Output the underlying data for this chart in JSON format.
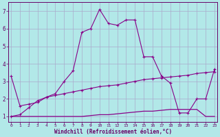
{
  "xlabel": "Windchill (Refroidissement éolien,°C)",
  "background_color": "#b2e8e8",
  "grid_color": "#aaaacc",
  "line_color": "#880088",
  "spine_color": "#660066",
  "text_color": "#660066",
  "x_ticks": [
    0,
    1,
    2,
    3,
    4,
    5,
    6,
    7,
    8,
    9,
    10,
    11,
    12,
    13,
    14,
    15,
    16,
    17,
    18,
    19,
    20,
    21,
    22,
    23
  ],
  "y_ticks": [
    1,
    2,
    3,
    4,
    5,
    6,
    7
  ],
  "xlim": [
    -0.3,
    23.3
  ],
  "ylim": [
    0.7,
    7.5
  ],
  "line1_x": [
    0,
    1,
    2,
    3,
    4,
    5,
    6,
    7,
    8,
    9,
    10,
    11,
    12,
    13,
    14,
    15,
    16,
    17,
    18,
    19,
    20,
    21,
    22,
    23
  ],
  "line1_y": [
    3.3,
    1.6,
    1.7,
    1.8,
    2.1,
    2.3,
    3.0,
    3.6,
    5.8,
    6.0,
    7.1,
    6.3,
    6.2,
    6.5,
    6.5,
    4.4,
    4.4,
    3.3,
    2.9,
    1.2,
    1.2,
    2.0,
    2.0,
    3.7
  ],
  "line2_x": [
    0,
    1,
    2,
    3,
    4,
    5,
    6,
    7,
    8,
    9,
    10,
    11,
    12,
    13,
    14,
    15,
    16,
    17,
    18,
    19,
    20,
    21,
    22,
    23
  ],
  "line2_y": [
    1.0,
    1.1,
    1.5,
    1.9,
    2.1,
    2.2,
    2.3,
    2.4,
    2.5,
    2.6,
    2.7,
    2.75,
    2.8,
    2.9,
    3.0,
    3.1,
    3.15,
    3.2,
    3.25,
    3.3,
    3.35,
    3.45,
    3.5,
    3.55
  ],
  "line3_x": [
    0,
    1,
    2,
    3,
    4,
    5,
    6,
    7,
    8,
    9,
    10,
    11,
    12,
    13,
    14,
    15,
    16,
    17,
    18,
    19,
    20,
    21,
    22,
    23
  ],
  "line3_y": [
    1.0,
    1.0,
    1.0,
    1.0,
    1.0,
    1.0,
    1.0,
    1.0,
    1.0,
    1.05,
    1.1,
    1.1,
    1.15,
    1.2,
    1.25,
    1.3,
    1.3,
    1.35,
    1.4,
    1.4,
    1.4,
    1.4,
    1.0,
    1.0
  ]
}
